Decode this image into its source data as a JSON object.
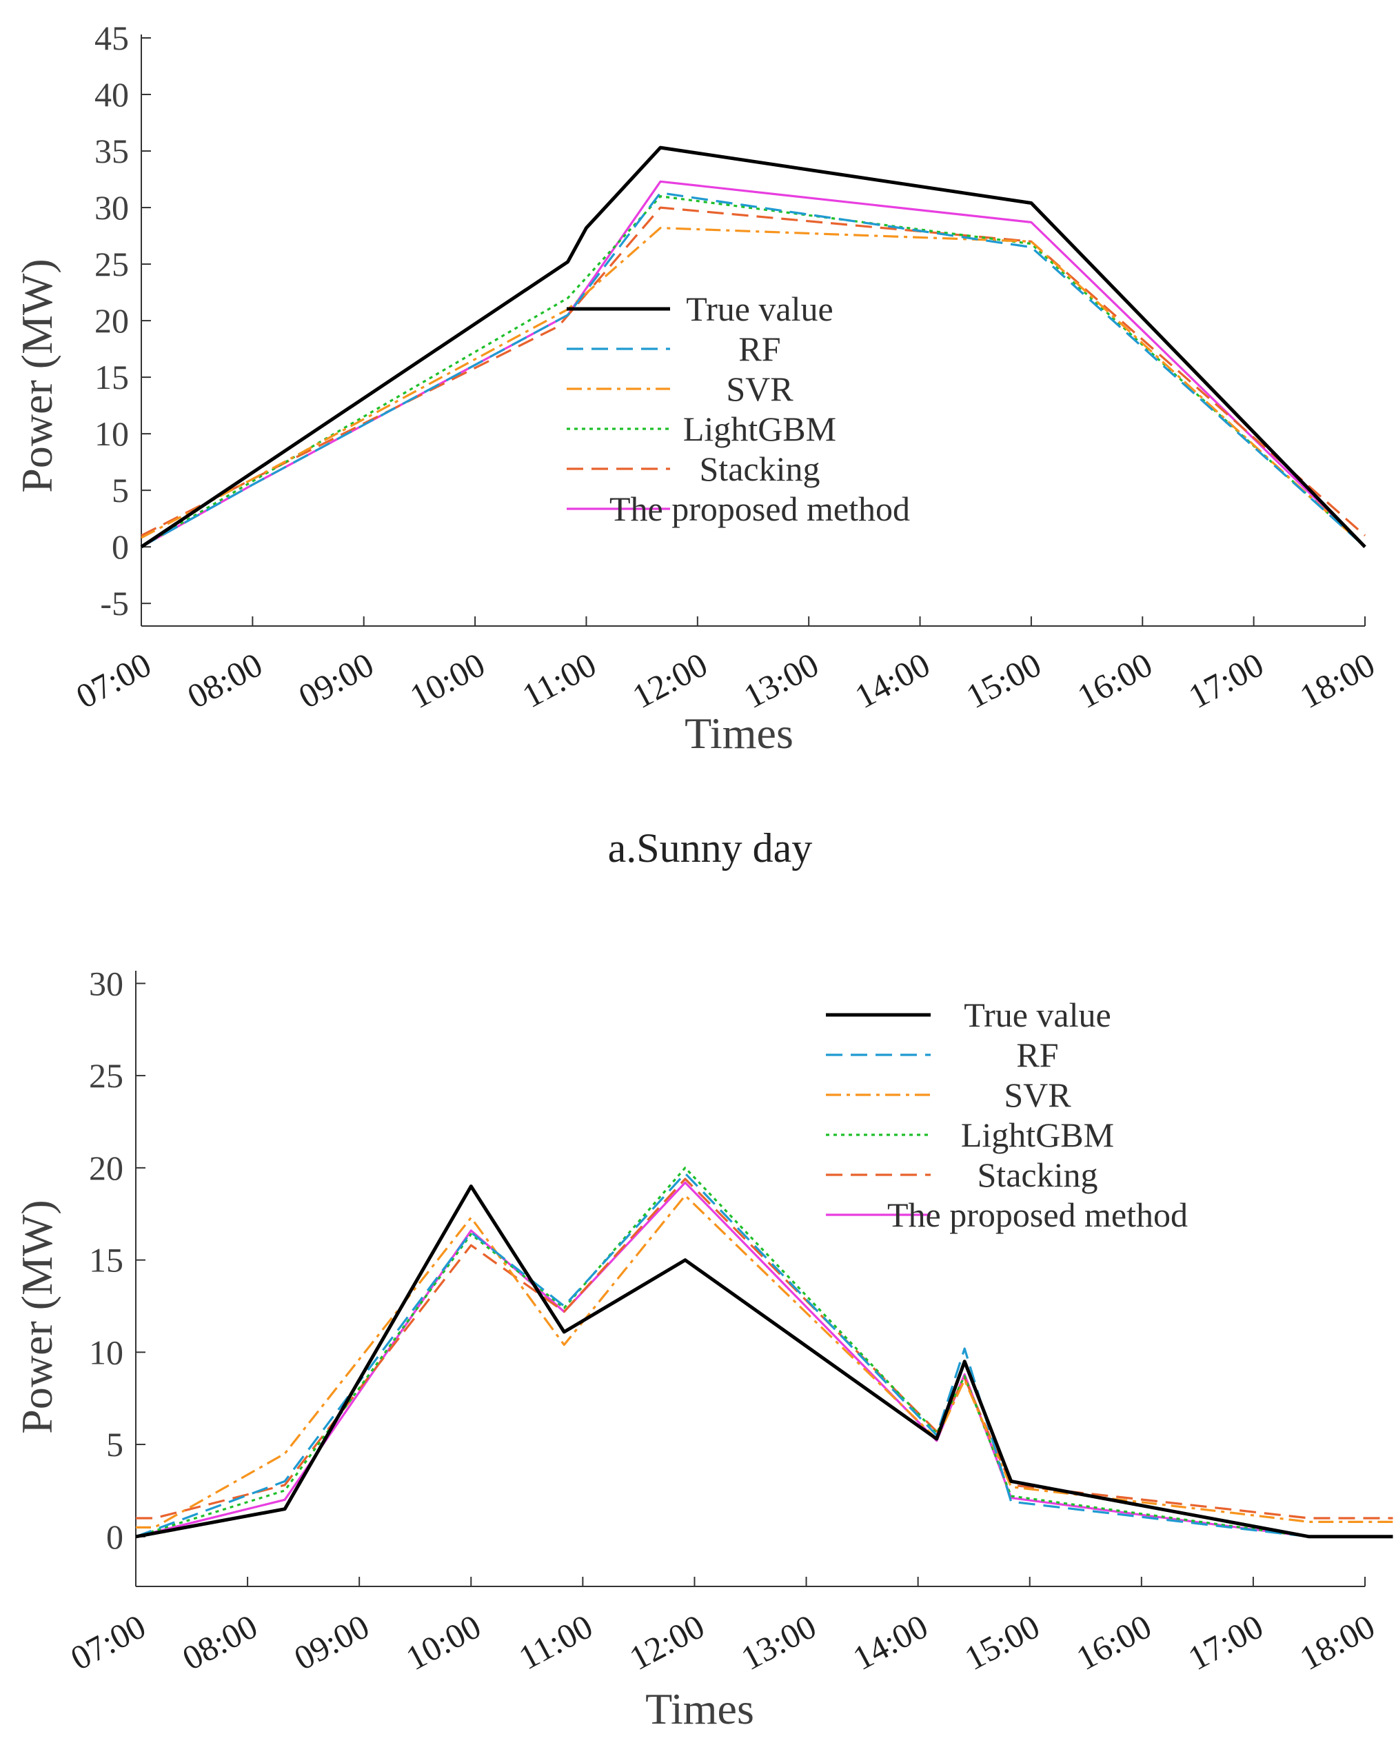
{
  "chart_data": [
    {
      "type": "line",
      "caption": "a.Sunny day",
      "xlabel": "Times",
      "ylabel": "Power (MW)",
      "ylim": [
        -7,
        45
      ],
      "yticks": [
        45,
        40,
        35,
        30,
        25,
        20,
        15,
        10,
        5,
        0,
        -5
      ],
      "xticks": [
        "07:00",
        "08:00",
        "09:00",
        "10:00",
        "11:00",
        "12:00",
        "13:00",
        "14:00",
        "15:00",
        "16:00",
        "17:00",
        "18:00"
      ],
      "legend": "center",
      "series": [
        {
          "name": "True value",
          "color": "#000000",
          "dash": "solid",
          "x": [
            "07:00",
            "10:50",
            "11:00",
            "11:40",
            "15:00",
            "18:00"
          ],
          "y": [
            0,
            25.2,
            28.2,
            35.3,
            30.4,
            0
          ]
        },
        {
          "name": "RF",
          "color": "#1f9ad0",
          "dash": "dashed",
          "x": [
            "07:00",
            "08:00",
            "10:50",
            "11:40",
            "15:00",
            "18:00"
          ],
          "y": [
            0,
            5.5,
            20.5,
            31.3,
            26.5,
            0
          ]
        },
        {
          "name": "SVR",
          "color": "#f7941d",
          "dash": "dashdot",
          "x": [
            "07:00",
            "08:00",
            "10:50",
            "11:40",
            "15:00",
            "18:00"
          ],
          "y": [
            0.8,
            6,
            21,
            28.2,
            27,
            0
          ]
        },
        {
          "name": "LightGBM",
          "color": "#1fbf2a",
          "dash": "dotted",
          "x": [
            "07:00",
            "08:00",
            "10:50",
            "11:40",
            "15:00",
            "18:00"
          ],
          "y": [
            0,
            5.8,
            22,
            31,
            26.8,
            0
          ]
        },
        {
          "name": "Stacking",
          "color": "#e8622d",
          "dash": "dashed",
          "x": [
            "07:00",
            "08:00",
            "10:45",
            "11:40",
            "15:00",
            "18:00"
          ],
          "y": [
            1,
            6,
            19.5,
            30,
            27,
            1
          ]
        },
        {
          "name": "The proposed method",
          "color": "#e83ee0",
          "dash": "solid",
          "x": [
            "07:00",
            "08:00",
            "10:50",
            "11:40",
            "15:00",
            "18:00"
          ],
          "y": [
            0,
            5.5,
            20.5,
            32.3,
            28.7,
            0
          ]
        }
      ]
    },
    {
      "type": "line",
      "xlabel": "Times",
      "ylabel": "Power (MW)",
      "ylim": [
        -2.7,
        30.5
      ],
      "yticks": [
        30,
        25,
        20,
        15,
        10,
        5,
        0
      ],
      "xticks": [
        "07:00",
        "08:00",
        "09:00",
        "10:00",
        "11:00",
        "12:00",
        "13:00",
        "14:00",
        "15:00",
        "16:00",
        "17:00",
        "18:00"
      ],
      "legend": "top-right",
      "series": [
        {
          "name": "True value",
          "color": "#000000",
          "dash": "solid",
          "x": [
            "07:00",
            "08:20",
            "10:00",
            "10:50",
            "11:55",
            "14:10",
            "14:25",
            "14:50",
            "17:30",
            "18:15"
          ],
          "y": [
            0,
            1.5,
            19,
            11.1,
            15,
            5.3,
            9.5,
            3,
            0,
            0
          ]
        },
        {
          "name": "RF",
          "color": "#1f9ad0",
          "dash": "dashed",
          "x": [
            "07:00",
            "08:20",
            "10:00",
            "10:50",
            "11:55",
            "14:10",
            "14:25",
            "14:50",
            "17:30",
            "18:15"
          ],
          "y": [
            0,
            3,
            16.5,
            12.5,
            19.7,
            5.5,
            10.2,
            1.9,
            0,
            0
          ]
        },
        {
          "name": "SVR",
          "color": "#f7941d",
          "dash": "dashdot",
          "x": [
            "07:00",
            "07:10",
            "08:20",
            "10:00",
            "10:50",
            "11:55",
            "14:10",
            "14:25",
            "14:50",
            "17:30",
            "18:15"
          ],
          "y": [
            0.5,
            0.5,
            4.5,
            17.3,
            10.4,
            18.5,
            5.3,
            8.5,
            2.7,
            0.8,
            0.8
          ]
        },
        {
          "name": "LightGBM",
          "color": "#1fbf2a",
          "dash": "dotted",
          "x": [
            "07:00",
            "08:20",
            "10:00",
            "10:50",
            "11:55",
            "14:10",
            "14:25",
            "14:50",
            "17:30",
            "18:15"
          ],
          "y": [
            0,
            2.5,
            16.4,
            12.4,
            20,
            5.6,
            8.7,
            2.2,
            0,
            0
          ]
        },
        {
          "name": "Stacking",
          "color": "#e8622d",
          "dash": "dashed",
          "x": [
            "07:00",
            "07:10",
            "08:20",
            "10:00",
            "10:50",
            "11:55",
            "14:10",
            "14:25",
            "14:50",
            "17:30",
            "18:15"
          ],
          "y": [
            1,
            1,
            2.8,
            15.8,
            12.2,
            19.4,
            5.7,
            8.6,
            2.8,
            1,
            1
          ]
        },
        {
          "name": "The proposed method",
          "color": "#e83ee0",
          "dash": "solid",
          "x": [
            "07:00",
            "08:20",
            "10:00",
            "10:50",
            "11:55",
            "14:10",
            "14:25",
            "14:50",
            "17:30",
            "18:15"
          ],
          "y": [
            0,
            2,
            16.6,
            12.2,
            19.2,
            5.2,
            8.8,
            2.1,
            0,
            0
          ]
        }
      ]
    }
  ]
}
